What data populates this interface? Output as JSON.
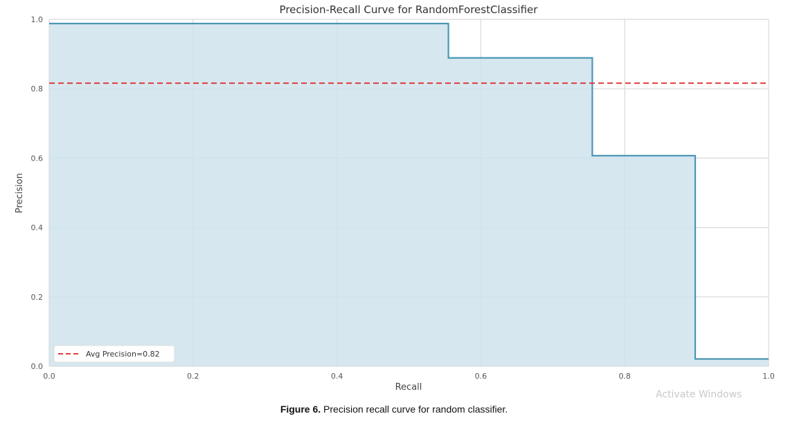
{
  "chart_data": {
    "type": "area",
    "title": "Precision-Recall Curve for RandomForestClassifier",
    "xlabel": "Recall",
    "ylabel": "Precision",
    "xlim": [
      0.0,
      1.0
    ],
    "ylim": [
      0.0,
      1.0
    ],
    "x_ticks": [
      "0.0",
      "0.2",
      "0.4",
      "0.6",
      "0.8",
      "1.0"
    ],
    "y_ticks": [
      "0.0",
      "0.2",
      "0.4",
      "0.6",
      "0.8",
      "1.0"
    ],
    "grid": true,
    "series": [
      {
        "style": "step",
        "x": [
          0.0,
          0.555,
          0.555,
          0.755,
          0.755,
          0.898,
          0.898,
          1.0
        ],
        "y": [
          0.988,
          0.988,
          0.889,
          0.889,
          0.607,
          0.607,
          0.021,
          0.021
        ]
      }
    ],
    "reference_line": {
      "name": "Avg Precision=0.82",
      "y": 0.816,
      "style": "dashed"
    },
    "legend": {
      "position": "lower-left",
      "entries": [
        "Avg Precision=0.82"
      ]
    },
    "colors": {
      "line": "#4a96b4",
      "fill": "#cfe3ec",
      "reference": "#e03a3a",
      "grid": "#d8d8d8"
    }
  },
  "caption": {
    "label": "Figure 6.",
    "text": " Precision recall curve for random classifier."
  },
  "watermark": "Activate Windows"
}
